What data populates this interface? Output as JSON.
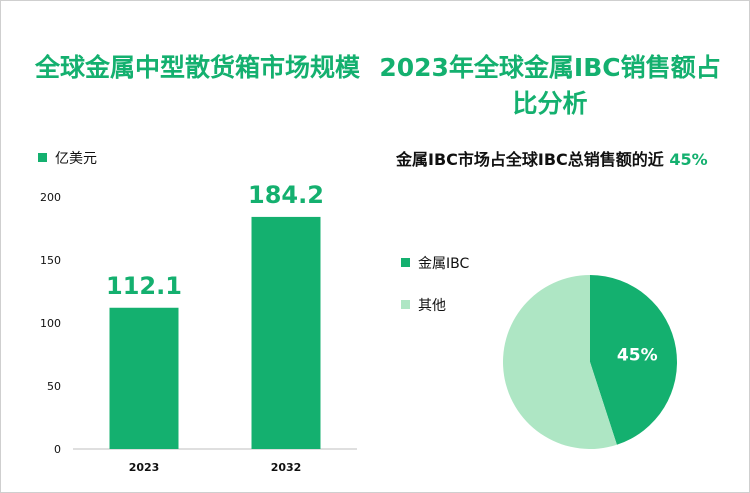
{
  "colors": {
    "accent": "#14b06f",
    "pie_light": "#aee6c4"
  },
  "left_panel": {
    "title": "全球金属中型散货箱市场规模",
    "legend": "亿美元"
  },
  "right_panel": {
    "title": "2023年全球金属IBC销售额占比分析",
    "note_prefix": "金属IBC市场占全球IBC总销售额的近",
    "note_value": "45%"
  },
  "chart_data": [
    {
      "type": "bar",
      "title": "全球金属中型散货箱市场规模",
      "categories": [
        "2023",
        "2032"
      ],
      "series": [
        {
          "name": "亿美元",
          "values": [
            112.1,
            184.2
          ]
        }
      ],
      "value_labels": [
        "112.1",
        "184.2"
      ],
      "ylim": [
        0,
        200
      ],
      "yticks": [
        0,
        50,
        100,
        150,
        200
      ],
      "grid": false,
      "legend": "top-left"
    },
    {
      "type": "pie",
      "title": "2023年全球金属IBC销售额占比分析",
      "labels": [
        "金属IBC",
        "其他"
      ],
      "values": [
        45,
        55
      ],
      "slice_labels": [
        "45%",
        ""
      ],
      "colors": [
        "#14b06f",
        "#aee6c4"
      ],
      "legend": "left"
    }
  ]
}
